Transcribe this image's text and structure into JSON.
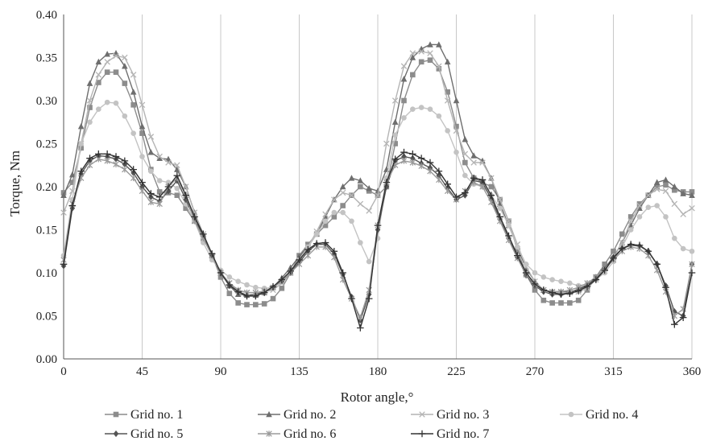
{
  "chart_data": {
    "type": "line",
    "title": "",
    "xlabel": "Rotor angle,°",
    "ylabel": "Torque, Nm",
    "xlim": [
      0,
      360
    ],
    "ylim": [
      0,
      0.4
    ],
    "x_ticks": [
      0,
      45,
      90,
      135,
      180,
      225,
      270,
      315,
      360
    ],
    "y_ticks": [
      0.0,
      0.05,
      0.1,
      0.15,
      0.2,
      0.25,
      0.3,
      0.35,
      0.4
    ],
    "x_tick_labels": [
      "0",
      "45",
      "90",
      "135",
      "180",
      "225",
      "270",
      "315",
      "360"
    ],
    "y_tick_labels": [
      "0.00",
      "0.05",
      "0.10",
      "0.15",
      "0.20",
      "0.25",
      "0.30",
      "0.35",
      "0.40"
    ],
    "grid": "vertical",
    "legend_position": "bottom",
    "x": [
      0,
      5,
      10,
      15,
      20,
      25,
      30,
      35,
      40,
      45,
      50,
      55,
      60,
      65,
      70,
      75,
      80,
      85,
      90,
      95,
      100,
      105,
      110,
      115,
      120,
      125,
      130,
      135,
      140,
      145,
      150,
      155,
      160,
      165,
      170,
      175,
      180,
      185,
      190,
      195,
      200,
      205,
      210,
      215,
      220,
      225,
      230,
      235,
      240,
      245,
      250,
      255,
      260,
      265,
      270,
      275,
      280,
      285,
      290,
      295,
      300,
      305,
      310,
      315,
      320,
      325,
      330,
      335,
      340,
      345,
      350,
      355,
      360
    ],
    "series": [
      {
        "name": "Grid no. 1",
        "color": "#8c8c8c",
        "marker": "square",
        "values": [
          0.193,
          0.205,
          0.245,
          0.292,
          0.321,
          0.333,
          0.333,
          0.32,
          0.295,
          0.262,
          0.22,
          0.194,
          0.193,
          0.19,
          0.175,
          0.16,
          0.14,
          0.12,
          0.095,
          0.076,
          0.065,
          0.063,
          0.063,
          0.064,
          0.07,
          0.082,
          0.1,
          0.12,
          0.133,
          0.145,
          0.155,
          0.165,
          0.178,
          0.19,
          0.2,
          0.195,
          0.19,
          0.2,
          0.25,
          0.3,
          0.33,
          0.345,
          0.347,
          0.337,
          0.31,
          0.27,
          0.228,
          0.21,
          0.205,
          0.2,
          0.185,
          0.16,
          0.127,
          0.098,
          0.08,
          0.068,
          0.065,
          0.065,
          0.065,
          0.068,
          0.08,
          0.095,
          0.11,
          0.125,
          0.145,
          0.165,
          0.18,
          0.19,
          0.2,
          0.202,
          0.196,
          0.194,
          0.194
        ]
      },
      {
        "name": "Grid no. 2",
        "color": "#6e6e6e",
        "marker": "triangle",
        "values": [
          0.19,
          0.214,
          0.27,
          0.32,
          0.345,
          0.354,
          0.355,
          0.34,
          0.31,
          0.27,
          0.24,
          0.233,
          0.232,
          0.22,
          0.2,
          0.17,
          0.145,
          0.12,
          0.1,
          0.085,
          0.075,
          0.074,
          0.074,
          0.077,
          0.083,
          0.094,
          0.106,
          0.119,
          0.13,
          0.145,
          0.165,
          0.185,
          0.2,
          0.21,
          0.207,
          0.198,
          0.195,
          0.22,
          0.275,
          0.325,
          0.35,
          0.36,
          0.365,
          0.365,
          0.345,
          0.3,
          0.255,
          0.236,
          0.23,
          0.21,
          0.18,
          0.155,
          0.13,
          0.105,
          0.09,
          0.08,
          0.078,
          0.078,
          0.078,
          0.08,
          0.085,
          0.095,
          0.105,
          0.118,
          0.135,
          0.155,
          0.175,
          0.19,
          0.205,
          0.208,
          0.2,
          0.192,
          0.19
        ]
      },
      {
        "name": "Grid no. 3",
        "color": "#b4b4b4",
        "marker": "x",
        "values": [
          0.17,
          0.195,
          0.25,
          0.3,
          0.33,
          0.345,
          0.352,
          0.35,
          0.33,
          0.295,
          0.258,
          0.235,
          0.228,
          0.225,
          0.2,
          0.17,
          0.145,
          0.12,
          0.1,
          0.088,
          0.079,
          0.077,
          0.077,
          0.078,
          0.08,
          0.088,
          0.1,
          0.115,
          0.13,
          0.148,
          0.168,
          0.185,
          0.193,
          0.19,
          0.18,
          0.172,
          0.19,
          0.25,
          0.3,
          0.34,
          0.355,
          0.357,
          0.355,
          0.34,
          0.3,
          0.265,
          0.238,
          0.228,
          0.228,
          0.21,
          0.185,
          0.16,
          0.133,
          0.107,
          0.09,
          0.08,
          0.077,
          0.077,
          0.077,
          0.078,
          0.082,
          0.092,
          0.102,
          0.117,
          0.135,
          0.16,
          0.178,
          0.19,
          0.197,
          0.195,
          0.18,
          0.168,
          0.175
        ]
      },
      {
        "name": "Grid no. 4",
        "color": "#c3c3c3",
        "marker": "circle",
        "values": [
          0.12,
          0.185,
          0.25,
          0.275,
          0.29,
          0.298,
          0.297,
          0.282,
          0.262,
          0.235,
          0.218,
          0.207,
          0.205,
          0.198,
          0.18,
          0.16,
          0.135,
          0.115,
          0.103,
          0.095,
          0.09,
          0.086,
          0.083,
          0.082,
          0.083,
          0.09,
          0.1,
          0.115,
          0.13,
          0.145,
          0.16,
          0.17,
          0.17,
          0.16,
          0.135,
          0.113,
          0.14,
          0.21,
          0.26,
          0.28,
          0.29,
          0.292,
          0.29,
          0.282,
          0.265,
          0.24,
          0.213,
          0.203,
          0.2,
          0.19,
          0.175,
          0.155,
          0.13,
          0.11,
          0.1,
          0.095,
          0.092,
          0.09,
          0.088,
          0.085,
          0.087,
          0.092,
          0.1,
          0.113,
          0.13,
          0.15,
          0.165,
          0.176,
          0.178,
          0.165,
          0.14,
          0.128,
          0.125
        ]
      },
      {
        "name": "Grid no. 5",
        "color": "#555555",
        "marker": "diamond",
        "values": [
          0.108,
          0.175,
          0.215,
          0.23,
          0.236,
          0.235,
          0.232,
          0.226,
          0.216,
          0.2,
          0.188,
          0.183,
          0.195,
          0.207,
          0.185,
          0.163,
          0.143,
          0.12,
          0.1,
          0.085,
          0.078,
          0.074,
          0.075,
          0.078,
          0.083,
          0.09,
          0.1,
          0.112,
          0.125,
          0.133,
          0.133,
          0.122,
          0.098,
          0.072,
          0.045,
          0.075,
          0.15,
          0.2,
          0.23,
          0.235,
          0.233,
          0.227,
          0.222,
          0.213,
          0.198,
          0.185,
          0.19,
          0.207,
          0.205,
          0.186,
          0.162,
          0.14,
          0.118,
          0.097,
          0.085,
          0.078,
          0.075,
          0.075,
          0.077,
          0.081,
          0.086,
          0.093,
          0.105,
          0.118,
          0.128,
          0.132,
          0.131,
          0.125,
          0.11,
          0.085,
          0.055,
          0.05,
          0.11
        ]
      },
      {
        "name": "Grid no. 6",
        "color": "#9a9a9a",
        "marker": "asterisk",
        "values": [
          0.115,
          0.18,
          0.21,
          0.225,
          0.232,
          0.23,
          0.226,
          0.22,
          0.21,
          0.195,
          0.182,
          0.18,
          0.2,
          0.21,
          0.19,
          0.16,
          0.14,
          0.12,
          0.1,
          0.088,
          0.08,
          0.077,
          0.077,
          0.079,
          0.083,
          0.09,
          0.1,
          0.11,
          0.12,
          0.13,
          0.13,
          0.118,
          0.092,
          0.07,
          0.048,
          0.08,
          0.155,
          0.205,
          0.225,
          0.23,
          0.228,
          0.224,
          0.218,
          0.208,
          0.195,
          0.185,
          0.195,
          0.205,
          0.2,
          0.182,
          0.16,
          0.138,
          0.117,
          0.098,
          0.086,
          0.08,
          0.078,
          0.078,
          0.08,
          0.083,
          0.088,
          0.095,
          0.105,
          0.115,
          0.125,
          0.13,
          0.128,
          0.12,
          0.103,
          0.078,
          0.05,
          0.058,
          0.11
        ]
      },
      {
        "name": "Grid no. 7",
        "color": "#333333",
        "marker": "plus",
        "values": [
          0.11,
          0.178,
          0.218,
          0.233,
          0.238,
          0.238,
          0.235,
          0.23,
          0.22,
          0.205,
          0.192,
          0.188,
          0.2,
          0.213,
          0.19,
          0.165,
          0.145,
          0.122,
          0.1,
          0.086,
          0.078,
          0.073,
          0.073,
          0.077,
          0.084,
          0.092,
          0.102,
          0.115,
          0.127,
          0.134,
          0.135,
          0.125,
          0.1,
          0.07,
          0.036,
          0.07,
          0.155,
          0.205,
          0.232,
          0.24,
          0.238,
          0.233,
          0.228,
          0.218,
          0.203,
          0.188,
          0.193,
          0.21,
          0.208,
          0.19,
          0.165,
          0.143,
          0.12,
          0.1,
          0.087,
          0.08,
          0.077,
          0.075,
          0.076,
          0.079,
          0.084,
          0.092,
          0.103,
          0.117,
          0.128,
          0.133,
          0.132,
          0.125,
          0.11,
          0.083,
          0.04,
          0.048,
          0.1
        ]
      }
    ]
  }
}
